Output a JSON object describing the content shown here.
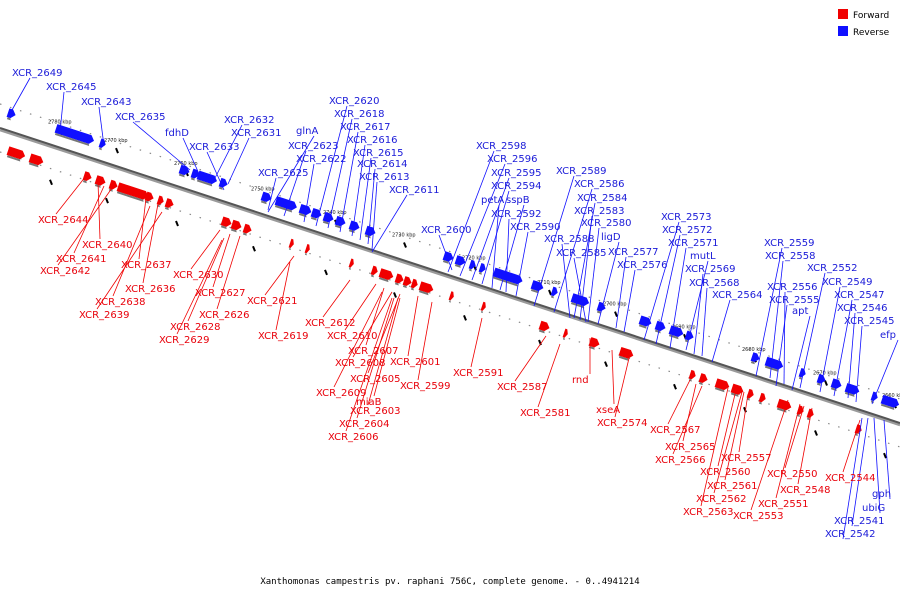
{
  "caption": "Xanthomonas campestris pv. raphani 756C, complete genome. - 0..4941214",
  "legend": {
    "forward": {
      "label": "Forward",
      "color": "#f00000"
    },
    "reverse": {
      "label": "Reverse",
      "color": "#1010ff"
    }
  },
  "ticks": [
    "2780 kbp",
    "2770 kbp",
    "2760 kbp",
    "2750 kbp",
    "2740 kbp",
    "2730 kbp",
    "2720 kbp",
    "2710 kbp",
    "2700 kbp",
    "2690 kbp",
    "2680 kbp",
    "2670 kbp",
    "2660 kbp"
  ],
  "reverse_genes": [
    "XCR_2649",
    "XCR_2645",
    "XCR_2643",
    "XCR_2635",
    "fdhD",
    "XCR_2632",
    "XCR_2631",
    "XCR_2633",
    "glnA",
    "XCR_2623",
    "XCR_2622",
    "XCR_2625",
    "XCR_2620",
    "XCR_2618",
    "XCR_2617",
    "XCR_2616",
    "XCR_2615",
    "XCR_2614",
    "XCR_2613",
    "XCR_2611",
    "XCR_2598",
    "XCR_2596",
    "XCR_2595",
    "XCR_2594",
    "petA",
    "sspB",
    "XCR_2592",
    "XCR_2590",
    "XCR_2600",
    "XCR_2589",
    "XCR_2586",
    "XCR_2584",
    "XCR_2583",
    "XCR_2580",
    "XCR_2588",
    "ligD",
    "XCR_2585",
    "XCR_2577",
    "XCR_2576",
    "XCR_2573",
    "XCR_2572",
    "XCR_2571",
    "mutL",
    "XCR_2569",
    "XCR_2568",
    "XCR_2564",
    "XCR_2559",
    "XCR_2558",
    "XCR_2552",
    "XCR_2556",
    "XCR_2549",
    "XCR_2555",
    "XCR_2547",
    "apt",
    "XCR_2546",
    "XCR_2545",
    "efp",
    "gph",
    "ubiG",
    "XCR_2541",
    "XCR_2542"
  ],
  "forward_genes": [
    "XCR_2644",
    "XCR_2640",
    "XCR_2641",
    "XCR_2642",
    "XCR_2637",
    "XCR_2636",
    "XCR_2638",
    "XCR_2639",
    "XCR_2630",
    "XCR_2627",
    "XCR_2626",
    "XCR_2628",
    "XCR_2629",
    "XCR_2621",
    "XCR_2619",
    "XCR_2612",
    "XCR_2610",
    "XCR_2607",
    "XCR_2608",
    "XCR_2605",
    "XCR_2609",
    "XCR_2601",
    "XCR_2599",
    "miaB",
    "XCR_2603",
    "XCR_2604",
    "XCR_2606",
    "XCR_2591",
    "XCR_2587",
    "rnd",
    "XCR_2581",
    "xseA",
    "XCR_2574",
    "XCR_2567",
    "XCR_2565",
    "XCR_2566",
    "XCR_2557",
    "XCR_2560",
    "XCR_2561",
    "XCR_2562",
    "XCR_2563",
    "XCR_2550",
    "XCR_2548",
    "XCR_2551",
    "XCR_2553",
    "XCR_2544"
  ]
}
